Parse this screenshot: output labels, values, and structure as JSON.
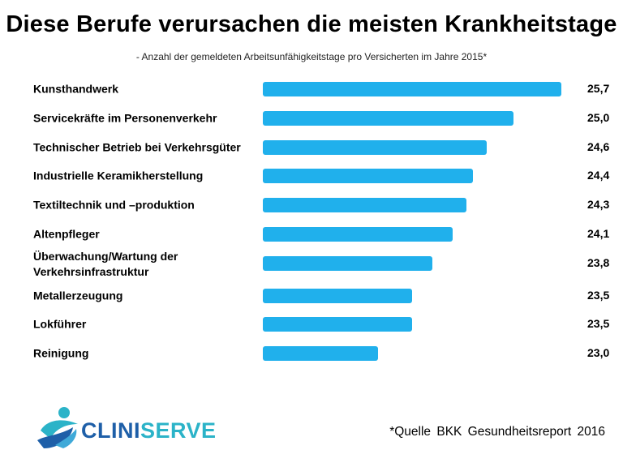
{
  "title": "Diese Berufe verursachen die meisten Krankheitstage",
  "subtitle": "- Anzahl der gemeldeten Arbeitsunfähigkeitstage pro Versicherten im Jahre 2015*",
  "source": "*Quelle  BKK Gesundheitsreport  2016",
  "logo": {
    "text_part1": "CLINI",
    "text_part2": "SERVE",
    "colors": [
      "#1e5fa8",
      "#2bb3c8"
    ]
  },
  "colors": {
    "bar": "#20b0ec"
  },
  "chart_data": {
    "type": "bar",
    "orientation": "horizontal",
    "categories": [
      "Kunsthandwerk",
      "Servicekräfte im Personenverkehr",
      "Technischer Betrieb bei Verkehrsgüter",
      "Industrielle Keramikherstellung",
      "Textiltechnik und –produktion",
      "Altenpfleger",
      "Überwachung/Wartung der Verkehrsinfrastruktur",
      "Metallerzeugung",
      "Lokführer",
      "Reinigung"
    ],
    "values": [
      25.7,
      25.0,
      24.6,
      24.4,
      24.3,
      24.1,
      23.8,
      23.5,
      23.5,
      23.0
    ],
    "value_labels": [
      "25,7",
      "25,0",
      "24,6",
      "24,4",
      "24,3",
      "24,1",
      "23,8",
      "23,5",
      "23,5",
      "23,0"
    ],
    "grid": false,
    "legend": "none"
  }
}
